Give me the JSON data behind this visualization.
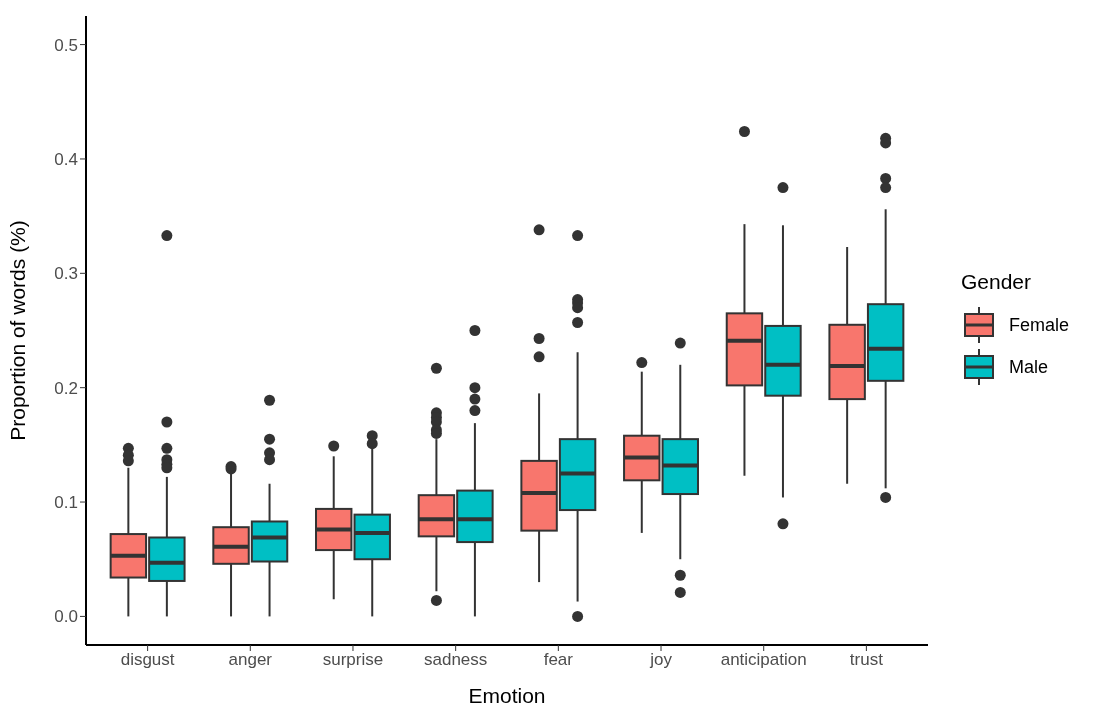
{
  "chart_data": {
    "type": "box",
    "xlabel": "Emotion",
    "ylabel": "Proportion of words (%)",
    "legend_title": "Gender",
    "legend": "right",
    "categories": [
      "disgust",
      "anger",
      "surprise",
      "sadness",
      "fear",
      "joy",
      "anticipation",
      "trust"
    ],
    "ylim": [
      -0.025,
      0.525
    ],
    "yticks": [
      {
        "value": 0,
        "label": "0.0"
      },
      {
        "value": 0.1,
        "label": "0.1"
      },
      {
        "value": 0.2,
        "label": "0.2"
      },
      {
        "value": 0.3,
        "label": "0.3"
      },
      {
        "value": 0.4,
        "label": "0.4"
      },
      {
        "value": 0.5,
        "label": "0.5"
      }
    ],
    "series": [
      {
        "name": "Female",
        "color": "#f8766d",
        "boxes": [
          {
            "low": 0,
            "q1": 0.034,
            "median": 0.053,
            "q3": 0.072,
            "high": 0.13,
            "outliers": [
              0.147,
              0.141,
              0.136
            ]
          },
          {
            "low": 0,
            "q1": 0.046,
            "median": 0.061,
            "q3": 0.078,
            "high": 0.125,
            "outliers": [
              0.131,
              0.129
            ]
          },
          {
            "low": 0.015,
            "q1": 0.058,
            "median": 0.076,
            "q3": 0.094,
            "high": 0.14,
            "outliers": [
              0.149
            ]
          },
          {
            "low": 0.022,
            "q1": 0.07,
            "median": 0.085,
            "q3": 0.106,
            "high": 0.155,
            "outliers": [
              0.217,
              0.178,
              0.174,
              0.17,
              0.163,
              0.16,
              0.014
            ]
          },
          {
            "low": 0.03,
            "q1": 0.075,
            "median": 0.108,
            "q3": 0.136,
            "high": 0.195,
            "outliers": [
              0.338,
              0.243,
              0.227
            ]
          },
          {
            "low": 0.073,
            "q1": 0.119,
            "median": 0.139,
            "q3": 0.158,
            "high": 0.214,
            "outliers": [
              0.222
            ]
          },
          {
            "low": 0.123,
            "q1": 0.202,
            "median": 0.241,
            "q3": 0.265,
            "high": 0.343,
            "outliers": [
              0.424
            ]
          },
          {
            "low": 0.116,
            "q1": 0.19,
            "median": 0.219,
            "q3": 0.255,
            "high": 0.323
          }
        ]
      },
      {
        "name": "Male",
        "color": "#00bfc4",
        "boxes": [
          {
            "low": 0,
            "q1": 0.031,
            "median": 0.047,
            "q3": 0.069,
            "high": 0.122,
            "outliers": [
              0.333,
              0.17,
              0.147,
              0.137,
              0.133,
              0.13
            ]
          },
          {
            "low": 0,
            "q1": 0.048,
            "median": 0.069,
            "q3": 0.083,
            "high": 0.116,
            "outliers": [
              0.189,
              0.155,
              0.143,
              0.137
            ]
          },
          {
            "low": 0,
            "q1": 0.05,
            "median": 0.073,
            "q3": 0.089,
            "high": 0.148,
            "outliers": [
              0.158,
              0.151
            ]
          },
          {
            "low": 0,
            "q1": 0.065,
            "median": 0.085,
            "q3": 0.11,
            "high": 0.169,
            "outliers": [
              0.25,
              0.2,
              0.19,
              0.18
            ]
          },
          {
            "low": 0.013,
            "q1": 0.093,
            "median": 0.125,
            "q3": 0.155,
            "high": 0.231,
            "outliers": [
              0.333,
              0.277,
              0.274,
              0.27,
              0.257,
              0
            ]
          },
          {
            "low": 0.05,
            "q1": 0.107,
            "median": 0.132,
            "q3": 0.155,
            "high": 0.22,
            "outliers": [
              0.239,
              0.036,
              0.021
            ]
          },
          {
            "low": 0.104,
            "q1": 0.193,
            "median": 0.22,
            "q3": 0.254,
            "high": 0.342,
            "outliers": [
              0.375,
              0.081
            ]
          },
          {
            "low": 0.112,
            "q1": 0.206,
            "median": 0.234,
            "q3": 0.273,
            "high": 0.356,
            "outliers": [
              0.418,
              0.414,
              0.383,
              0.375,
              0.104
            ]
          }
        ]
      }
    ]
  }
}
